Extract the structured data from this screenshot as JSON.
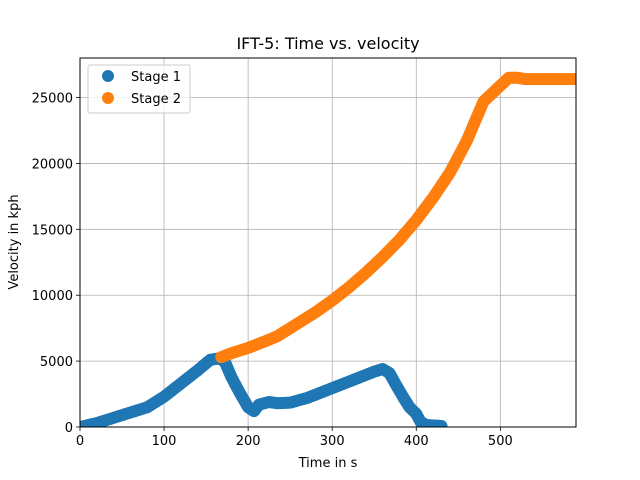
{
  "chart_data": {
    "type": "scatter",
    "title": "IFT-5: Time vs. velocity",
    "xlabel": "Time in s",
    "ylabel": "Velocity in kph",
    "xlim": [
      0,
      590
    ],
    "ylim": [
      0,
      28000
    ],
    "xticks": [
      0,
      100,
      200,
      300,
      400,
      500
    ],
    "yticks": [
      0,
      5000,
      10000,
      15000,
      20000,
      25000
    ],
    "grid": true,
    "legend_position": "top-left",
    "series": [
      {
        "name": "Stage 1",
        "color": "#1f77b4",
        "points": [
          [
            0,
            0
          ],
          [
            20,
            300
          ],
          [
            40,
            700
          ],
          [
            60,
            1100
          ],
          [
            80,
            1500
          ],
          [
            100,
            2300
          ],
          [
            120,
            3300
          ],
          [
            140,
            4300
          ],
          [
            155,
            5100
          ],
          [
            165,
            5200
          ],
          [
            172,
            5000
          ],
          [
            180,
            3800
          ],
          [
            190,
            2600
          ],
          [
            200,
            1500
          ],
          [
            207,
            1200
          ],
          [
            213,
            1700
          ],
          [
            225,
            1900
          ],
          [
            235,
            1800
          ],
          [
            250,
            1850
          ],
          [
            270,
            2200
          ],
          [
            290,
            2700
          ],
          [
            310,
            3200
          ],
          [
            330,
            3700
          ],
          [
            350,
            4200
          ],
          [
            360,
            4400
          ],
          [
            368,
            4100
          ],
          [
            375,
            3300
          ],
          [
            385,
            2200
          ],
          [
            392,
            1500
          ],
          [
            400,
            1000
          ],
          [
            405,
            400
          ],
          [
            412,
            150
          ],
          [
            425,
            100
          ],
          [
            430,
            80
          ]
        ]
      },
      {
        "name": "Stage 2",
        "color": "#ff7f0e",
        "points": [
          [
            168,
            5300
          ],
          [
            180,
            5600
          ],
          [
            200,
            6000
          ],
          [
            220,
            6500
          ],
          [
            235,
            6900
          ],
          [
            240,
            7100
          ],
          [
            245,
            7300
          ],
          [
            260,
            7900
          ],
          [
            280,
            8700
          ],
          [
            300,
            9600
          ],
          [
            320,
            10600
          ],
          [
            340,
            11700
          ],
          [
            360,
            12900
          ],
          [
            380,
            14200
          ],
          [
            400,
            15700
          ],
          [
            420,
            17400
          ],
          [
            440,
            19300
          ],
          [
            460,
            21700
          ],
          [
            480,
            24700
          ],
          [
            500,
            25900
          ],
          [
            510,
            26500
          ],
          [
            520,
            26500
          ],
          [
            530,
            26400
          ],
          [
            550,
            26400
          ],
          [
            570,
            26400
          ],
          [
            590,
            26400
          ]
        ]
      }
    ]
  }
}
